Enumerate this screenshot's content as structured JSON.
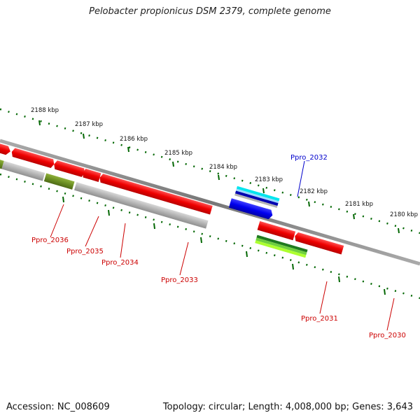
{
  "title": "Pelobacter propionicus DSM 2379, complete genome",
  "footer": {
    "accession": "Accession: NC_008609",
    "summary": "Topology: circular; Length: 4,008,000 bp; Genes: 3,643"
  },
  "scale_labels": [
    "2188 kbp",
    "2187 kbp",
    "2186 kbp",
    "2185 kbp",
    "2184 kbp",
    "2183 kbp",
    "2182 kbp",
    "2181 kbp",
    "2180 kbp"
  ],
  "gene_labels": [
    "Ppro_2036",
    "Ppro_2035",
    "Ppro_2034",
    "Ppro_2033",
    "Ppro_2032",
    "Ppro_2031",
    "Ppro_2030"
  ],
  "colors": {
    "backbone": "#808080",
    "gene_red": "#ee0000",
    "label_red": "#cc0000",
    "label_blue": "#0000cc",
    "tick_green": "#006600",
    "olive": "#6b8e23",
    "grey_feature": "#b3b3b3",
    "blue_gene": "#0000ee",
    "cyan_feature": "#00e5ee",
    "green_feature": "#228b22",
    "lime_feature": "#adff2f"
  }
}
